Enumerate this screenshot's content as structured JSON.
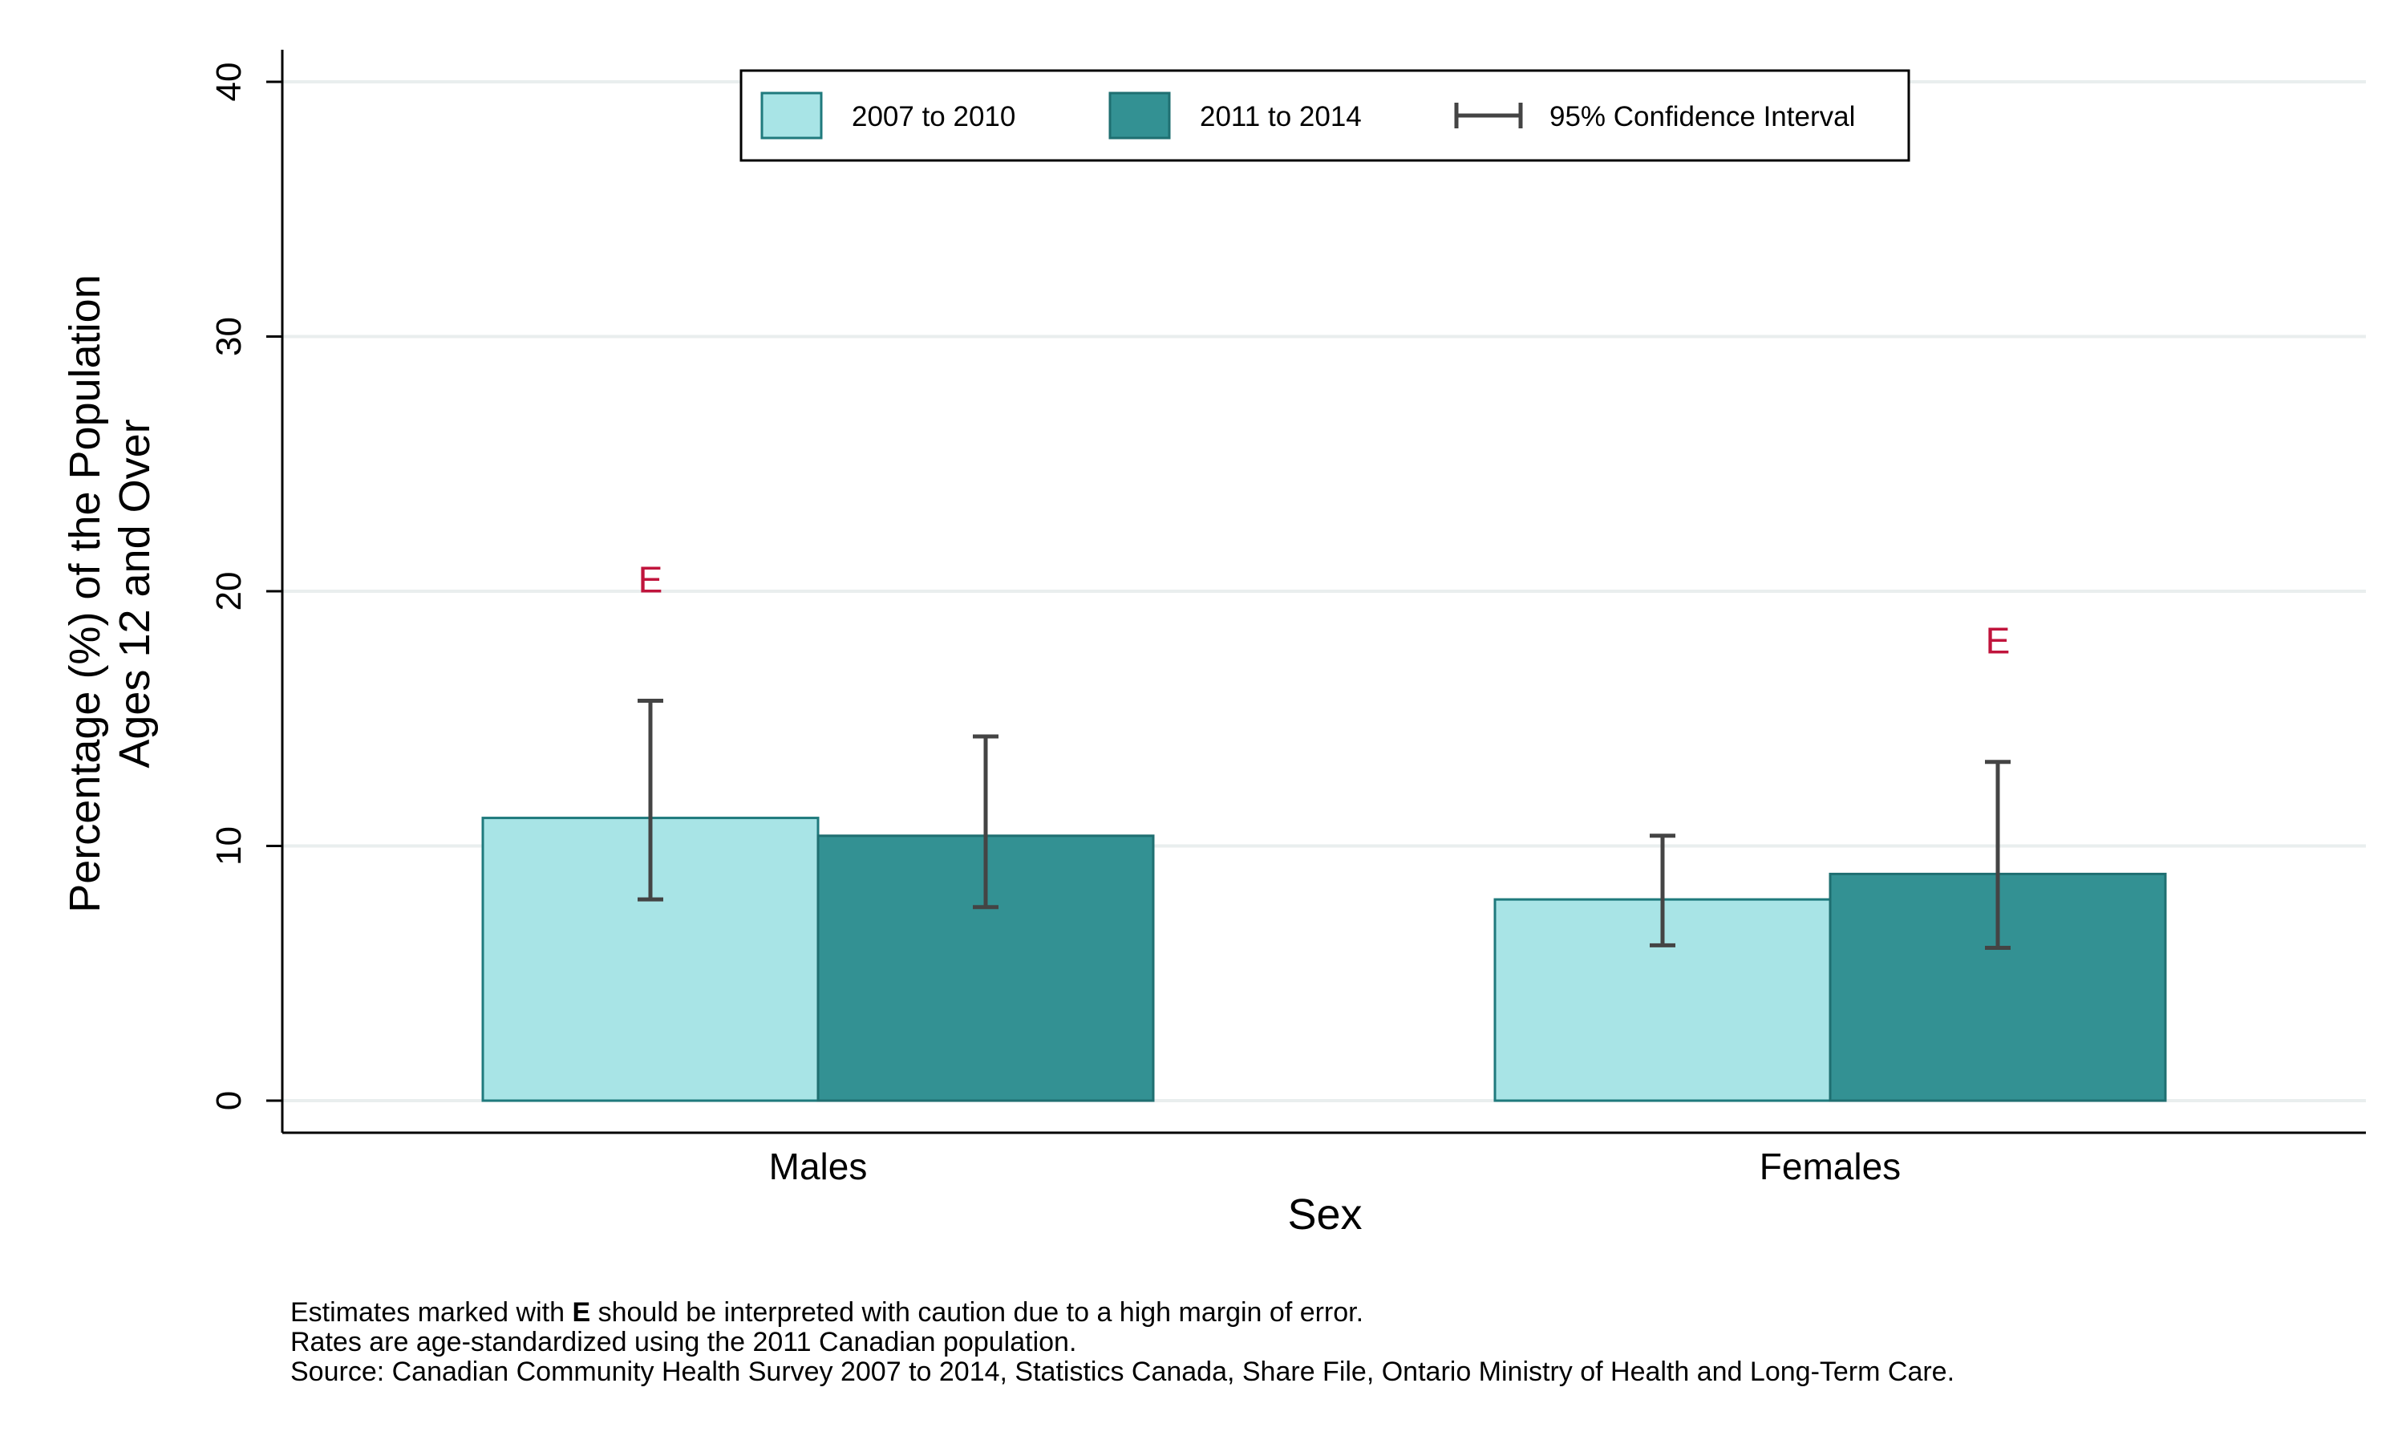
{
  "chart_data": {
    "type": "bar",
    "xlabel": "Sex",
    "ylabel_lines": [
      "Percentage (%) of the Population",
      "Ages 12 and Over"
    ],
    "categories": [
      "Males",
      "Females"
    ],
    "ylim": [
      0,
      40
    ],
    "yticks": [
      0,
      10,
      20,
      30,
      40
    ],
    "grid": true,
    "legend_position": "top-center",
    "series": [
      {
        "name": "2007 to 2010",
        "color": "#a8e4e6",
        "values": [
          11.1,
          7.9
        ],
        "ci_low": [
          7.9,
          6.1
        ],
        "ci_high": [
          15.7,
          10.4
        ],
        "flags": [
          "E",
          ""
        ]
      },
      {
        "name": "2011 to 2014",
        "color": "#339193",
        "values": [
          10.4,
          8.9
        ],
        "ci_low": [
          7.6,
          6.0
        ],
        "ci_high": [
          14.3,
          13.3
        ],
        "flags": [
          "",
          "E"
        ]
      }
    ],
    "ci_legend_label": "95% Confidence Interval"
  },
  "footnotes": {
    "line1_pre": "Estimates marked with ",
    "line1_bold": "E",
    "line1_post": " should be interpreted with caution due to a high margin of error.",
    "line2": "Rates are age-standardized using the 2011 Canadian population.",
    "line3": "Source: Canadian Community Health Survey 2007 to 2014, Statistics Canada, Share File, Ontario Ministry of Health and Long-Term Care."
  }
}
